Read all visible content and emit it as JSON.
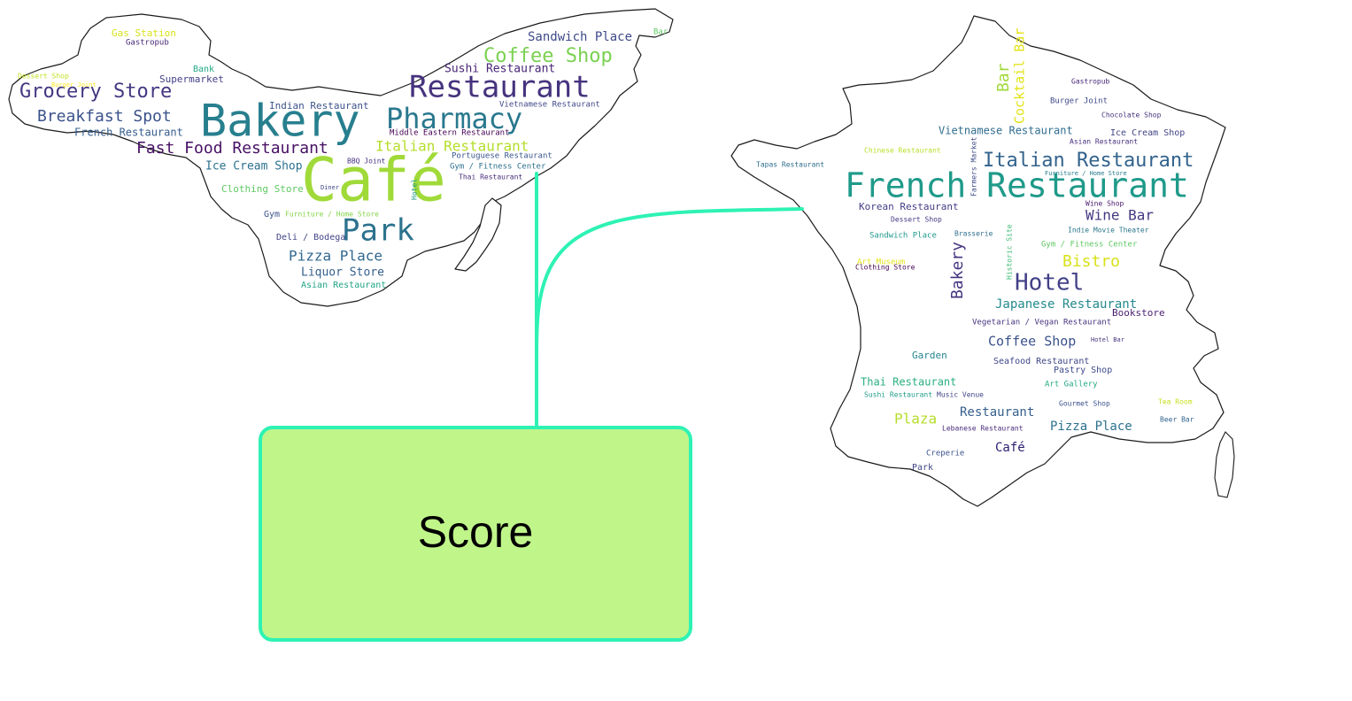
{
  "score_box": {
    "label": "Score"
  },
  "colors": {
    "connector": "#2ef2b4",
    "score_fill": "#c0f58a"
  },
  "wordclouds": [
    {
      "name": "left-region-wordcloud",
      "words": [
        {
          "text": "Café",
          "color": "#a0da39"
        },
        {
          "text": "Bakery",
          "color": "#277f8e"
        },
        {
          "text": "Restaurant",
          "color": "#46337e"
        },
        {
          "text": "Pharmacy",
          "color": "#2a788e"
        },
        {
          "text": "Park",
          "color": "#2c728e"
        },
        {
          "text": "Grocery Store",
          "color": "#453781"
        },
        {
          "text": "Coffee Shop",
          "color": "#7ad151"
        },
        {
          "text": "Breakfast Spot",
          "color": "#3b528b"
        },
        {
          "text": "Fast Food Restaurant",
          "color": "#471164"
        },
        {
          "text": "Italian Restaurant",
          "color": "#b5de2b"
        },
        {
          "text": "Sandwich Place",
          "color": "#3e4a89"
        },
        {
          "text": "Pizza Place",
          "color": "#31688e"
        },
        {
          "text": "Sushi Restaurant",
          "color": "#482576"
        },
        {
          "text": "French Restaurant",
          "color": "#365d8d"
        },
        {
          "text": "Liquor Store",
          "color": "#355f8d"
        },
        {
          "text": "Ice Cream Shop",
          "color": "#2c728e"
        },
        {
          "text": "Indian Restaurant",
          "color": "#3b528b"
        },
        {
          "text": "Supermarket",
          "color": "#433e85"
        },
        {
          "text": "Clothing Store",
          "color": "#5ec962"
        },
        {
          "text": "Gas Station",
          "color": "#d8e219"
        },
        {
          "text": "Deli / Bodega",
          "color": "#414487"
        },
        {
          "text": "Asian Restaurant",
          "color": "#20a486"
        },
        {
          "text": "Middle Eastern Restaurant",
          "color": "#440154"
        },
        {
          "text": "Vietnamese Restaurant",
          "color": "#3f4788"
        },
        {
          "text": "Portuguese Restaurant",
          "color": "#39568c"
        },
        {
          "text": "Gastropub",
          "color": "#482878"
        },
        {
          "text": "Bank",
          "color": "#22a884"
        },
        {
          "text": "Gym",
          "color": "#3b528b"
        },
        {
          "text": "Gym / Fitness Center",
          "color": "#2d708e"
        },
        {
          "text": "Furniture / Home Store",
          "color": "#84d44b"
        },
        {
          "text": "Thai Restaurant",
          "color": "#472d7b"
        },
        {
          "text": "BBQ Joint",
          "color": "#46307e"
        },
        {
          "text": "Dessert Shop",
          "color": "#c2df23"
        },
        {
          "text": "Burger Joint",
          "color": "#fde725"
        },
        {
          "text": "Bar",
          "color": "#5ec962"
        },
        {
          "text": "Hotel",
          "color": "#1f9e89"
        },
        {
          "text": "Diner",
          "color": "#3e4989"
        }
      ]
    },
    {
      "name": "france-wordcloud",
      "words": [
        {
          "text": "French Restaurant",
          "color": "#1f9a8a"
        },
        {
          "text": "Italian Restaurant",
          "color": "#33638d"
        },
        {
          "text": "Hotel",
          "color": "#424086"
        },
        {
          "text": "Bar",
          "color": "#a0da39"
        },
        {
          "text": "Cocktail Bar",
          "color": "#e2e418"
        },
        {
          "text": "Bistro",
          "color": "#d8e219"
        },
        {
          "text": "Bakery",
          "color": "#463480"
        },
        {
          "text": "Wine Bar",
          "color": "#453882"
        },
        {
          "text": "Japanese Restaurant",
          "color": "#238a8d"
        },
        {
          "text": "Coffee Shop",
          "color": "#3b528b"
        },
        {
          "text": "Vietnamese Restaurant",
          "color": "#2f6c8e"
        },
        {
          "text": "Korean Restaurant",
          "color": "#433e85"
        },
        {
          "text": "Plaza",
          "color": "#b5de2b"
        },
        {
          "text": "Pizza Place",
          "color": "#2c728e"
        },
        {
          "text": "Restaurant",
          "color": "#355f8d"
        },
        {
          "text": "Café",
          "color": "#2d1e70"
        },
        {
          "text": "Thai Restaurant",
          "color": "#29af7f"
        },
        {
          "text": "Ice Cream Shop",
          "color": "#414487"
        },
        {
          "text": "Seafood Restaurant",
          "color": "#3f4788"
        },
        {
          "text": "Pastry Shop",
          "color": "#3e4a89"
        },
        {
          "text": "Garden",
          "color": "#25858e"
        },
        {
          "text": "Bookstore",
          "color": "#481f70"
        },
        {
          "text": "Gym / Fitness Center",
          "color": "#5ec962"
        },
        {
          "text": "Sandwich Place",
          "color": "#1f988b"
        },
        {
          "text": "Art Gallery",
          "color": "#22a884"
        },
        {
          "text": "Burger Joint",
          "color": "#3e4a89"
        },
        {
          "text": "Chocolate Shop",
          "color": "#46327e"
        },
        {
          "text": "Asian Restaurant",
          "color": "#472f7d"
        },
        {
          "text": "Art Museum",
          "color": "#e5e419"
        },
        {
          "text": "Dessert Shop",
          "color": "#453781"
        },
        {
          "text": "Historic Site",
          "color": "#3dbc74"
        },
        {
          "text": "Farmers Market",
          "color": "#3e4c8a"
        },
        {
          "text": "Brasserie",
          "color": "#2e6e8e"
        },
        {
          "text": "Clothing Store",
          "color": "#440154"
        },
        {
          "text": "Vegetarian / Vegan Restaurant",
          "color": "#46337e"
        },
        {
          "text": "Lebanese Restaurant",
          "color": "#472a7a"
        },
        {
          "text": "Creperie",
          "color": "#3b528b"
        },
        {
          "text": "Park",
          "color": "#404588"
        },
        {
          "text": "Sushi Restaurant",
          "color": "#1f9e89"
        },
        {
          "text": "Music Venue",
          "color": "#414487"
        },
        {
          "text": "Beer Bar",
          "color": "#33638d"
        },
        {
          "text": "Tea Room",
          "color": "#c8e020"
        },
        {
          "text": "Gourmet Shop",
          "color": "#3c508b"
        },
        {
          "text": "Hotel Bar",
          "color": "#463480"
        },
        {
          "text": "Wine Shop",
          "color": "#481a6c"
        },
        {
          "text": "Indie Movie Theater",
          "color": "#2a768e"
        },
        {
          "text": "Gastropub",
          "color": "#482878"
        },
        {
          "text": "Chinese Restaurant",
          "color": "#b8de29"
        },
        {
          "text": "Tapas Restaurant",
          "color": "#2e6f8e"
        },
        {
          "text": "Furniture / Home Store",
          "color": "#287d8e"
        }
      ]
    }
  ]
}
